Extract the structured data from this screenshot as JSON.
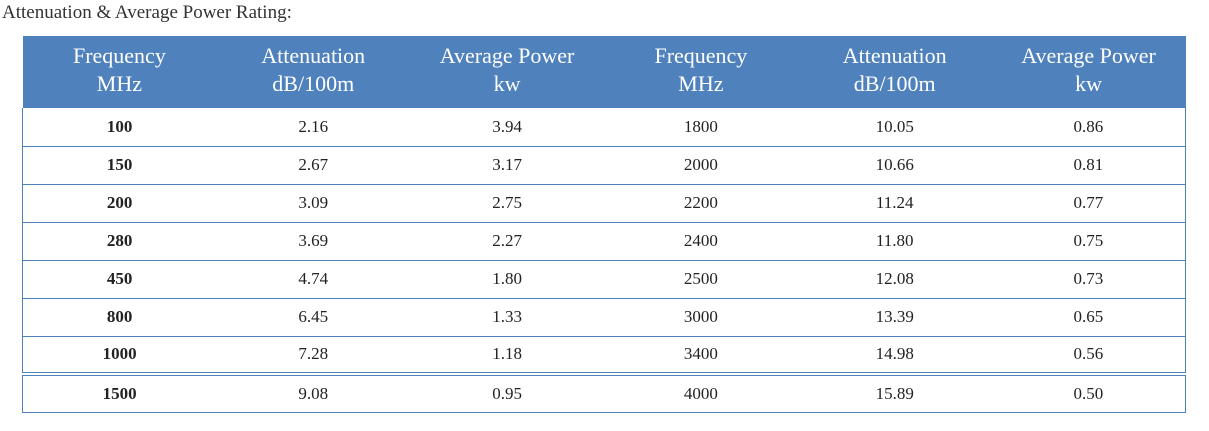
{
  "title": "Attenuation & Average Power Rating:",
  "table": {
    "header": [
      "Frequency MHz",
      "Attenuation dB/100m",
      "Average Power kw",
      "Frequency MHz",
      "Attenuation dB/100m",
      "Average Power kw"
    ],
    "rows": [
      [
        "100",
        "2.16",
        "3.94",
        "1800",
        "10.05",
        "0.86"
      ],
      [
        "150",
        "2.67",
        "3.17",
        "2000",
        "10.66",
        "0.81"
      ],
      [
        "200",
        "3.09",
        "2.75",
        "2200",
        "11.24",
        "0.77"
      ],
      [
        "280",
        "3.69",
        "2.27",
        "2400",
        "11.80",
        "0.75"
      ],
      [
        "450",
        "4.74",
        "1.80",
        "2500",
        "12.08",
        "0.73"
      ],
      [
        "800",
        "6.45",
        "1.33",
        "3000",
        "13.39",
        "0.65"
      ],
      [
        "1000",
        "7.28",
        "1.18",
        "3400",
        "14.98",
        "0.56"
      ],
      [
        "1500",
        "9.08",
        "0.95",
        "4000",
        "15.89",
        "0.50"
      ]
    ]
  }
}
